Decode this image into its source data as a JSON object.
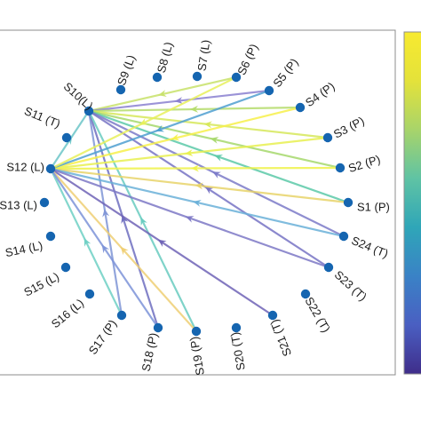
{
  "diagram": {
    "nodes": [
      {
        "id": "S1",
        "label": "S1 (P)"
      },
      {
        "id": "S2",
        "label": "S2 (P)"
      },
      {
        "id": "S3",
        "label": "S3 (P)"
      },
      {
        "id": "S4",
        "label": "S4 (P)"
      },
      {
        "id": "S5",
        "label": "S5 (P)"
      },
      {
        "id": "S6",
        "label": "S6 (P)"
      },
      {
        "id": "S7",
        "label": "S7 (L)"
      },
      {
        "id": "S8",
        "label": "S8 (L)"
      },
      {
        "id": "S9",
        "label": "S9 (L)"
      },
      {
        "id": "S10",
        "label": "S10(L)"
      },
      {
        "id": "S11",
        "label": "S11 (T)"
      },
      {
        "id": "S12",
        "label": "S12 (L)"
      },
      {
        "id": "S13",
        "label": "S13 (L)"
      },
      {
        "id": "S14",
        "label": "S14 (L)"
      },
      {
        "id": "S15",
        "label": "S15 (L)"
      },
      {
        "id": "S16",
        "label": "S16 (L)"
      },
      {
        "id": "S17",
        "label": "S17 (P)"
      },
      {
        "id": "S18",
        "label": "S18 (P)"
      },
      {
        "id": "S19",
        "label": "S19 (P)"
      },
      {
        "id": "S20",
        "label": "S20 (T)"
      },
      {
        "id": "S21",
        "label": "S21 (T)"
      },
      {
        "id": "S22",
        "label": "S22 (T)"
      },
      {
        "id": "S23",
        "label": "S23 (T)"
      },
      {
        "id": "S24",
        "label": "S24 (T)"
      }
    ],
    "edges": [
      {
        "from": "S6",
        "to": "S10",
        "color": "#c8e26a"
      },
      {
        "from": "S5",
        "to": "S10",
        "color": "#8a80d0"
      },
      {
        "from": "S4",
        "to": "S10",
        "color": "#b5dc6c"
      },
      {
        "from": "S3",
        "to": "S10",
        "color": "#d6e85a"
      },
      {
        "from": "S2",
        "to": "S10",
        "color": "#a6d86c"
      },
      {
        "from": "S1",
        "to": "S10",
        "color": "#5cc9a8"
      },
      {
        "from": "S24",
        "to": "S10",
        "color": "#7b7ac8"
      },
      {
        "from": "S23",
        "to": "S10",
        "color": "#7773c4"
      },
      {
        "from": "S17",
        "to": "S10",
        "color": "#7f95d6"
      },
      {
        "from": "S18",
        "to": "S10",
        "color": "#6f6ec0"
      },
      {
        "from": "S19",
        "to": "S10",
        "color": "#68cbc0"
      },
      {
        "from": "S12",
        "to": "S10",
        "color": "#6cc6c8"
      },
      {
        "from": "S4",
        "to": "S12",
        "color": "#f7f04a"
      },
      {
        "from": "S3",
        "to": "S12",
        "color": "#e8f050"
      },
      {
        "from": "S2",
        "to": "S12",
        "color": "#eef24a"
      },
      {
        "from": "S1",
        "to": "S12",
        "color": "#e8d46a"
      },
      {
        "from": "S24",
        "to": "S12",
        "color": "#6ab0d8"
      },
      {
        "from": "S23",
        "to": "S12",
        "color": "#7d78c6"
      },
      {
        "from": "S21",
        "to": "S12",
        "color": "#6e63b6"
      },
      {
        "from": "S19",
        "to": "S12",
        "color": "#efcf74"
      },
      {
        "from": "S17",
        "to": "S12",
        "color": "#6fd0c4"
      },
      {
        "from": "S5",
        "to": "S12",
        "color": "#4f9fd0"
      },
      {
        "from": "S6",
        "to": "S12",
        "color": "#e7f05a"
      },
      {
        "from": "S18",
        "to": "S12",
        "color": "#7d93d8"
      }
    ],
    "node_color": "#1565b0",
    "colorbar_colors": [
      "#f7ea30",
      "#e4e23a",
      "#a8d46a",
      "#5fc3a4",
      "#2fa6b8",
      "#3a82c6",
      "#4a5fc2",
      "#3f2d8a"
    ]
  }
}
